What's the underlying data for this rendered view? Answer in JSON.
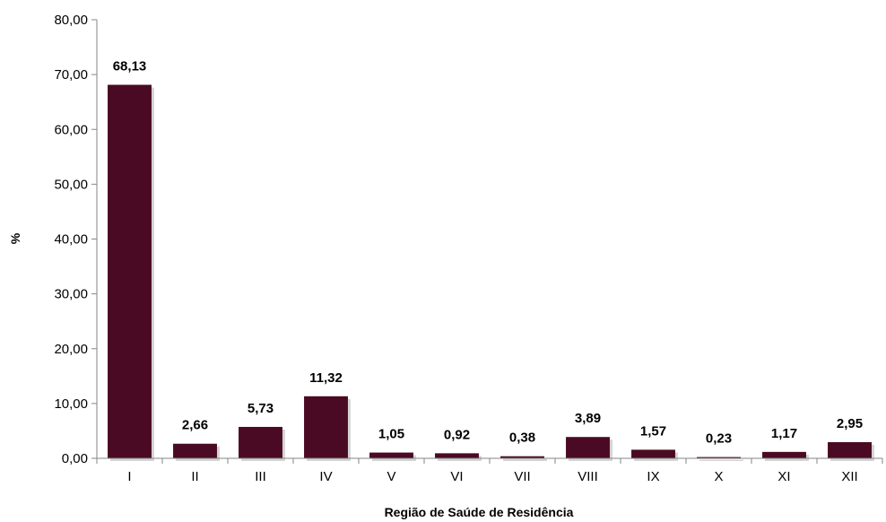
{
  "chart_data": {
    "type": "bar",
    "title": "",
    "xlabel": "Região de Saúde de Residência",
    "ylabel": "%",
    "categories": [
      "I",
      "II",
      "III",
      "IV",
      "V",
      "VI",
      "VII",
      "VIII",
      "IX",
      "X",
      "XI",
      "XII"
    ],
    "values": [
      68.13,
      2.66,
      5.73,
      11.32,
      1.05,
      0.92,
      0.38,
      3.89,
      1.57,
      0.23,
      1.17,
      2.95
    ],
    "value_labels": [
      "68,13",
      "2,66",
      "5,73",
      "11,32",
      "1,05",
      "0,92",
      "0,38",
      "3,89",
      "1,57",
      "0,23",
      "1,17",
      "2,95"
    ],
    "ylim": [
      0,
      80
    ],
    "yticks": [
      0,
      10,
      20,
      30,
      40,
      50,
      60,
      70,
      80
    ],
    "ytick_labels": [
      "0,00",
      "10,00",
      "20,00",
      "30,00",
      "40,00",
      "50,00",
      "60,00",
      "70,00",
      "80,00"
    ],
    "grid": false,
    "legend": "none",
    "bar_color": "#4a0a23",
    "bar_shadow_color": "#b8b8b8"
  }
}
